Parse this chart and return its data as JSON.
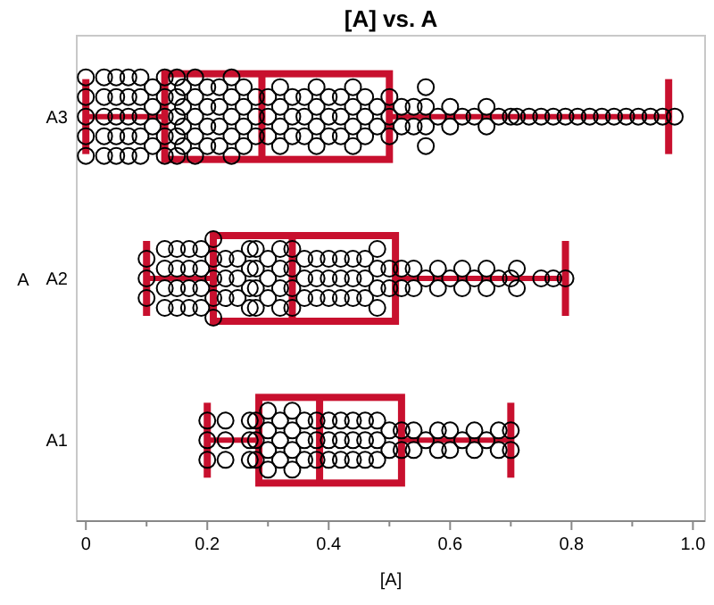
{
  "chart_data": {
    "type": "box",
    "orientation": "horizontal",
    "title": "[A] vs. A",
    "xlabel": "[A]",
    "ylabel": "A",
    "categories": [
      "A3",
      "A2",
      "A1"
    ],
    "xlim": [
      -0.015,
      1.02
    ],
    "xticks": [
      0,
      {
        "value": 0.1,
        "label": null
      },
      0.2,
      {
        "value": 0.3,
        "label": null
      },
      0.4,
      {
        "value": 0.5,
        "label": null
      },
      0.6,
      {
        "value": 0.7,
        "label": null
      },
      0.8,
      {
        "value": 0.9,
        "label": null
      },
      {
        "value": 1,
        "label": "1.0"
      }
    ],
    "grid": false,
    "series": [
      {
        "type": "box",
        "color": "#c8102e",
        "boxes": [
          {
            "low": 0,
            "q1": 0.13,
            "median": 0.29,
            "q3": 0.5,
            "high": 0.96
          },
          {
            "low": 0.1,
            "q1": 0.21,
            "median": 0.34,
            "q3": 0.51,
            "high": 0.79
          },
          {
            "low": 0.2,
            "q1": 0.285,
            "median": 0.385,
            "q3": 0.52,
            "high": 0.7
          }
        ]
      },
      {
        "type": "scatter",
        "color": "#000000",
        "marker": "circle",
        "x": [
          "A3",
          "A3",
          "A3",
          "A3",
          "A3",
          "A3",
          "A3",
          "A3",
          "A3",
          "A3",
          "A3",
          "A3",
          "A3",
          "A3",
          "A3",
          "A3",
          "A3",
          "A3",
          "A3",
          "A3",
          "A3",
          "A3",
          "A3",
          "A3",
          "A3",
          "A3",
          "A3",
          "A3",
          "A3",
          "A3",
          "A3",
          "A3",
          "A3",
          "A3",
          "A3",
          "A3",
          "A3",
          "A3",
          "A3",
          "A3",
          "A3",
          "A3",
          "A3",
          "A3",
          "A3",
          "A3",
          "A3",
          "A3",
          "A3",
          "A3",
          "A3",
          "A3",
          "A3",
          "A3",
          "A3",
          "A3",
          "A3",
          "A3",
          "A3",
          "A3",
          "A3",
          "A3",
          "A3",
          "A3",
          "A3",
          "A3",
          "A3",
          "A3",
          "A3",
          "A3",
          "A3",
          "A3",
          "A3",
          "A3",
          "A3",
          "A3",
          "A3",
          "A3",
          "A3",
          "A3",
          "A3",
          "A3",
          "A3",
          "A3",
          "A3",
          "A3",
          "A3",
          "A3",
          "A3",
          "A3",
          "A3",
          "A3",
          "A3",
          "A3",
          "A3",
          "A3",
          "A3",
          "A3",
          "A3",
          "A3",
          "A3",
          "A3",
          "A3",
          "A3",
          "A3",
          "A3",
          "A3",
          "A3",
          "A3",
          "A3",
          "A3",
          "A3",
          "A3",
          "A3",
          "A3",
          "A3",
          "A3",
          "A3",
          "A3",
          "A3",
          "A3",
          "A3",
          "A3",
          "A3",
          "A3",
          "A3",
          "A3",
          "A3",
          "A3",
          "A3",
          "A3",
          "A3",
          "A3",
          "A3"
        ],
        "values": [
          0,
          0,
          0,
          0,
          0,
          0.03,
          0.03,
          0.03,
          0.03,
          0.03,
          0.05,
          0.05,
          0.05,
          0.05,
          0.05,
          0.07,
          0.07,
          0.07,
          0.07,
          0.07,
          0.09,
          0.09,
          0.09,
          0.09,
          0.09,
          0.11,
          0.11,
          0.11,
          0.11,
          0.13,
          0.13,
          0.13,
          0.13,
          0.13,
          0.15,
          0.15,
          0.15,
          0.15,
          0.15,
          0.16,
          0.16,
          0.16,
          0.16,
          0.18,
          0.18,
          0.18,
          0.18,
          0.18,
          0.2,
          0.2,
          0.2,
          0.2,
          0.22,
          0.22,
          0.22,
          0.22,
          0.24,
          0.24,
          0.24,
          0.24,
          0.24,
          0.26,
          0.26,
          0.26,
          0.26,
          0.28,
          0.28,
          0.28,
          0.3,
          0.3,
          0.3,
          0.32,
          0.32,
          0.32,
          0.32,
          0.34,
          0.34,
          0.34,
          0.36,
          0.36,
          0.36,
          0.38,
          0.38,
          0.38,
          0.38,
          0.4,
          0.4,
          0.4,
          0.42,
          0.42,
          0.42,
          0.44,
          0.44,
          0.44,
          0.44,
          0.46,
          0.46,
          0.46,
          0.48,
          0.48,
          0.5,
          0.5,
          0.5,
          0.52,
          0.52,
          0.54,
          0.54,
          0.56,
          0.56,
          0.56,
          0.56,
          0.58,
          0.6,
          0.6,
          0.62,
          0.64,
          0.66,
          0.66,
          0.68,
          0.7,
          0.71,
          0.73,
          0.75,
          0.77,
          0.79,
          0.81,
          0.83,
          0.85,
          0.87,
          0.89,
          0.91,
          0.93,
          0.95,
          0.97
        ]
      },
      {
        "type": "scatter",
        "color": "#000000",
        "marker": "circle",
        "x": [
          "A2",
          "A2",
          "A2",
          "A2",
          "A2",
          "A2",
          "A2",
          "A2",
          "A2",
          "A2",
          "A2",
          "A2",
          "A2",
          "A2",
          "A2",
          "A2",
          "A2",
          "A2",
          "A2",
          "A2",
          "A2",
          "A2",
          "A2",
          "A2",
          "A2",
          "A2",
          "A2",
          "A2",
          "A2",
          "A2",
          "A2",
          "A2",
          "A2",
          "A2",
          "A2",
          "A2",
          "A2",
          "A2",
          "A2",
          "A2",
          "A2",
          "A2",
          "A2",
          "A2",
          "A2",
          "A2",
          "A2",
          "A2",
          "A2",
          "A2",
          "A2",
          "A2",
          "A2",
          "A2",
          "A2",
          "A2",
          "A2",
          "A2",
          "A2",
          "A2",
          "A2",
          "A2",
          "A2",
          "A2",
          "A2",
          "A2",
          "A2",
          "A2",
          "A2",
          "A2",
          "A2",
          "A2",
          "A2",
          "A2",
          "A2",
          "A2",
          "A2",
          "A2",
          "A2",
          "A2",
          "A2",
          "A2",
          "A2",
          "A2",
          "A2",
          "A2",
          "A2",
          "A2",
          "A2",
          "A2",
          "A2",
          "A2",
          "A2"
        ],
        "values": [
          0.1,
          0.1,
          0.1,
          0.13,
          0.13,
          0.13,
          0.13,
          0.15,
          0.15,
          0.15,
          0.15,
          0.17,
          0.17,
          0.17,
          0.17,
          0.19,
          0.19,
          0.19,
          0.19,
          0.21,
          0.21,
          0.21,
          0.21,
          0.21,
          0.23,
          0.23,
          0.23,
          0.25,
          0.25,
          0.25,
          0.27,
          0.27,
          0.27,
          0.27,
          0.28,
          0.28,
          0.28,
          0.28,
          0.3,
          0.3,
          0.3,
          0.32,
          0.32,
          0.32,
          0.32,
          0.34,
          0.34,
          0.34,
          0.34,
          0.36,
          0.36,
          0.36,
          0.38,
          0.38,
          0.38,
          0.4,
          0.4,
          0.4,
          0.42,
          0.42,
          0.42,
          0.44,
          0.44,
          0.44,
          0.46,
          0.46,
          0.46,
          0.48,
          0.48,
          0.48,
          0.48,
          0.5,
          0.5,
          0.52,
          0.52,
          0.54,
          0.54,
          0.56,
          0.58,
          0.58,
          0.6,
          0.62,
          0.62,
          0.64,
          0.66,
          0.66,
          0.68,
          0.7,
          0.71,
          0.71,
          0.75,
          0.77,
          0.79
        ]
      },
      {
        "type": "scatter",
        "color": "#000000",
        "marker": "circle",
        "x": [
          "A1",
          "A1",
          "A1",
          "A1",
          "A1",
          "A1",
          "A1",
          "A1",
          "A1",
          "A1",
          "A1",
          "A1",
          "A1",
          "A1",
          "A1",
          "A1",
          "A1",
          "A1",
          "A1",
          "A1",
          "A1",
          "A1",
          "A1",
          "A1",
          "A1",
          "A1",
          "A1",
          "A1",
          "A1",
          "A1",
          "A1",
          "A1",
          "A1",
          "A1",
          "A1",
          "A1",
          "A1",
          "A1",
          "A1",
          "A1",
          "A1",
          "A1",
          "A1",
          "A1",
          "A1",
          "A1",
          "A1",
          "A1",
          "A1",
          "A1",
          "A1",
          "A1",
          "A1",
          "A1",
          "A1",
          "A1",
          "A1",
          "A1",
          "A1",
          "A1",
          "A1",
          "A1",
          "A1"
        ],
        "values": [
          0.2,
          0.2,
          0.2,
          0.23,
          0.23,
          0.23,
          0.27,
          0.27,
          0.27,
          0.28,
          0.28,
          0.28,
          0.3,
          0.3,
          0.3,
          0.3,
          0.32,
          0.32,
          0.32,
          0.34,
          0.34,
          0.34,
          0.34,
          0.36,
          0.36,
          0.36,
          0.38,
          0.38,
          0.38,
          0.4,
          0.4,
          0.4,
          0.42,
          0.42,
          0.42,
          0.44,
          0.44,
          0.44,
          0.46,
          0.46,
          0.46,
          0.48,
          0.48,
          0.48,
          0.5,
          0.5,
          0.52,
          0.52,
          0.54,
          0.54,
          0.56,
          0.58,
          0.58,
          0.6,
          0.6,
          0.62,
          0.64,
          0.64,
          0.66,
          0.68,
          0.68,
          0.7,
          0.7
        ]
      }
    ]
  }
}
